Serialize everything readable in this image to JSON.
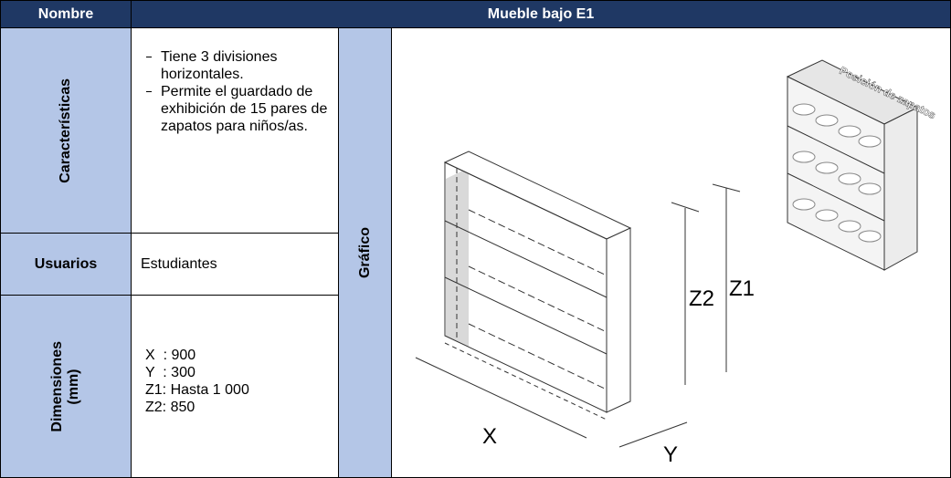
{
  "header": {
    "name_label": "Nombre",
    "title": "Mueble bajo E1"
  },
  "rows": [
    {
      "label": "Características",
      "items": [
        "Tiene 3 divisiones horizontales.",
        "Permite el guardado de exhibición de 15 pares de zapatos para niños/as."
      ]
    },
    {
      "label": "Usuarios",
      "value": "Estudiantes"
    },
    {
      "label": "Dimensiones",
      "unit": "(mm)",
      "lines": [
        "X  : 900",
        "Y  : 300",
        "Z1: Hasta 1 000",
        "Z2: 850"
      ]
    }
  ],
  "graphic": {
    "label": "Gráfico",
    "dimension_labels": {
      "x": "X",
      "y": "Y",
      "z1": "Z1",
      "z2": "Z2"
    },
    "inset_label": "Posición de zapatos"
  }
}
